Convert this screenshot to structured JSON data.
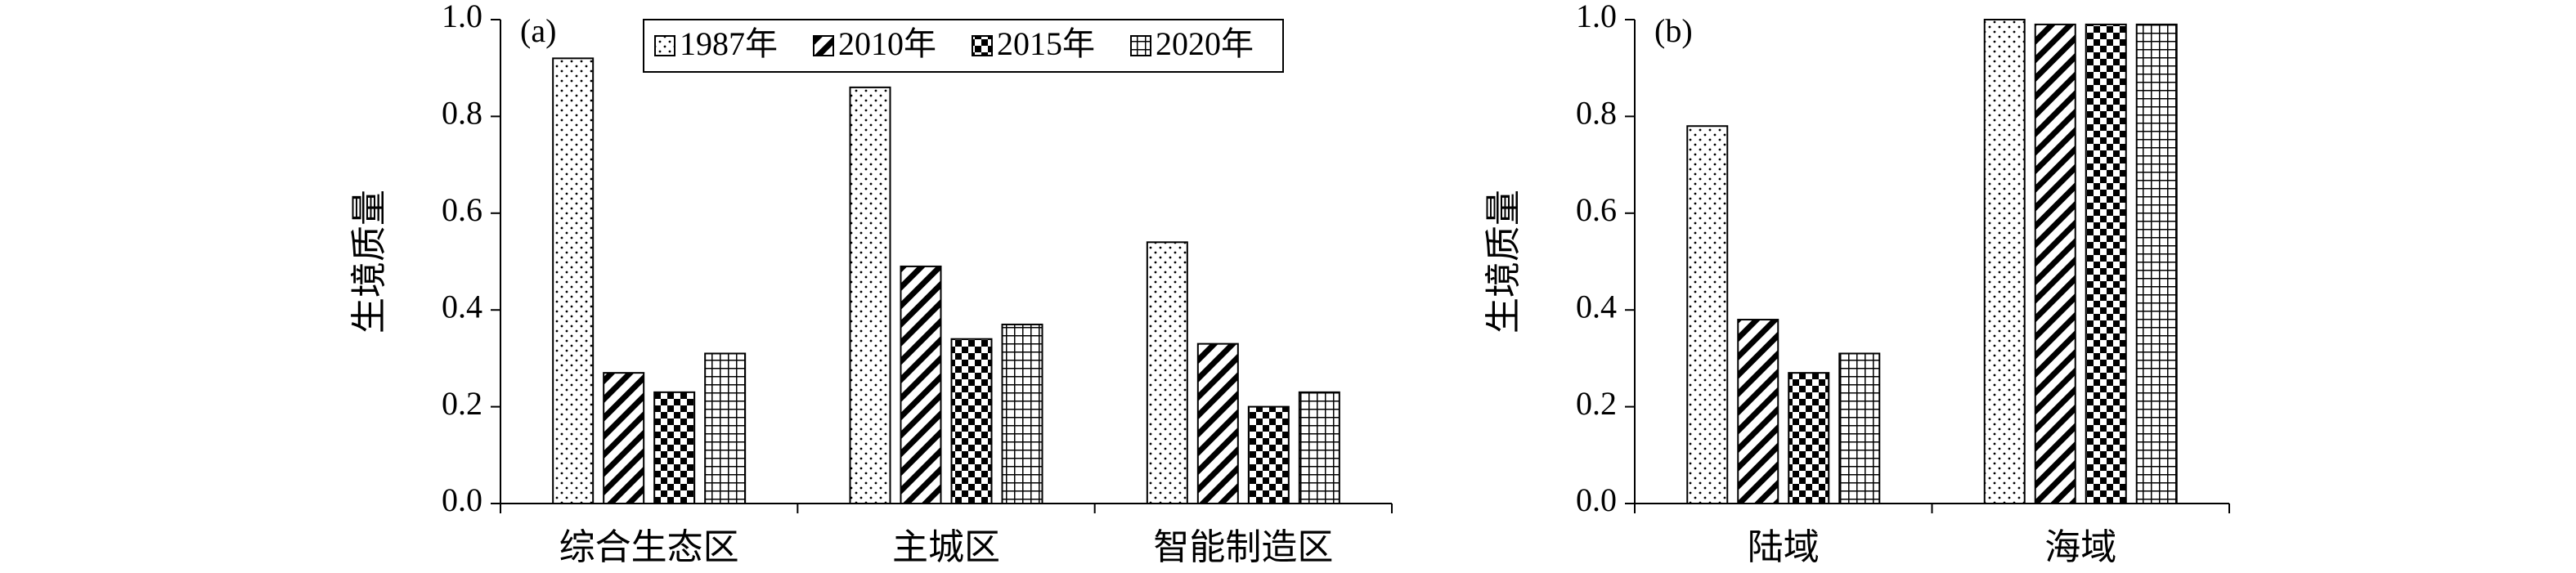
{
  "chart_data": [
    {
      "type": "bar",
      "annotation": "(a)",
      "ylabel": "生境质量",
      "categories": [
        "综合生态区",
        "主城区",
        "智能制造区"
      ],
      "series": [
        {
          "name": "1987年",
          "pattern": "dots",
          "color": "#000000",
          "values": [
            0.92,
            0.86,
            0.54
          ]
        },
        {
          "name": "2010年",
          "pattern": "diagonal",
          "color": "#000000",
          "values": [
            0.27,
            0.49,
            0.33
          ]
        },
        {
          "name": "2015年",
          "pattern": "checker",
          "color": "#000000",
          "values": [
            0.23,
            0.34,
            0.2
          ]
        },
        {
          "name": "2020年",
          "pattern": "grid",
          "color": "#000000",
          "values": [
            0.31,
            0.37,
            0.23
          ]
        }
      ],
      "ylim": [
        0,
        1
      ],
      "yticks": [
        {
          "value": 0,
          "label": "0.0"
        },
        0.2,
        0.4,
        0.6,
        0.8,
        {
          "value": 1,
          "label": "1.0"
        }
      ],
      "legend": "top"
    },
    {
      "type": "bar",
      "annotation": "(b)",
      "ylabel": "生境质量",
      "categories": [
        "陆域",
        "海域"
      ],
      "series": [
        {
          "pattern": "dots",
          "color": "#000000",
          "values": [
            0.78,
            1.0
          ]
        },
        {
          "pattern": "diagonal",
          "color": "#000000",
          "values": [
            0.38,
            0.99
          ]
        },
        {
          "pattern": "checker",
          "color": "#000000",
          "values": [
            0.27,
            0.99
          ]
        },
        {
          "pattern": "grid",
          "color": "#000000",
          "values": [
            0.31,
            0.99
          ]
        }
      ],
      "ylim": [
        0,
        1
      ],
      "yticks": [
        {
          "value": 0,
          "label": "0.0"
        },
        0.2,
        0.4,
        0.6,
        0.8,
        {
          "value": 1,
          "label": "1.0"
        }
      ]
    }
  ]
}
